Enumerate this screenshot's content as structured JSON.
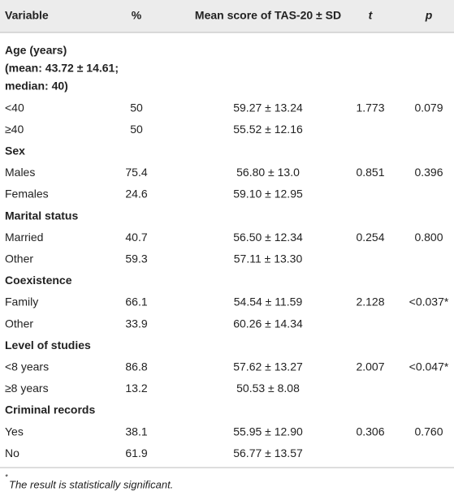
{
  "table": {
    "header": [
      "Variable",
      "%",
      "Mean score of TAS-20 ± SD",
      "t",
      "p"
    ],
    "groups": [
      {
        "title": [
          "Age (years)",
          "(mean: 43.72 ± 14.61;",
          "median: 40)"
        ],
        "rows": [
          [
            "<40",
            "50",
            "59.27 ± 13.24",
            "1.773",
            "0.079"
          ],
          [
            "≥40",
            "50",
            "55.52 ± 12.16"
          ]
        ]
      },
      {
        "title": [
          "Sex"
        ],
        "rows": [
          [
            "Males",
            "75.4",
            "56.80 ± 13.0",
            "0.851",
            "0.396"
          ],
          [
            "Females",
            "24.6",
            "59.10 ± 12.95"
          ]
        ]
      },
      {
        "title": [
          "Marital status"
        ],
        "rows": [
          [
            "Married",
            "40.7",
            "56.50 ± 12.34",
            "0.254",
            "0.800"
          ],
          [
            "Other",
            "59.3",
            "57.11 ± 13.30"
          ]
        ]
      },
      {
        "title": [
          "Coexistence"
        ],
        "rows": [
          [
            "Family",
            "66.1",
            "54.54 ± 11.59",
            "2.128",
            "<0.037*"
          ],
          [
            "Other",
            "33.9",
            "60.26 ± 14.34"
          ]
        ]
      },
      {
        "title": [
          "Level of studies"
        ],
        "rows": [
          [
            "<8 years",
            "86.8",
            "57.62 ± 13.27",
            "2.007",
            "<0.047*"
          ],
          [
            "≥8 years",
            "13.2",
            "50.53 ± 8.08"
          ]
        ]
      },
      {
        "title": [
          "Criminal records"
        ],
        "rows": [
          [
            "Yes",
            "38.1",
            "55.95 ± 12.90",
            "0.306",
            "0.760"
          ],
          [
            "No",
            "61.9",
            "56.77 ± 13.57"
          ]
        ]
      }
    ],
    "footnote": {
      "marker": "*",
      "text": "The result is statistically significant."
    }
  }
}
